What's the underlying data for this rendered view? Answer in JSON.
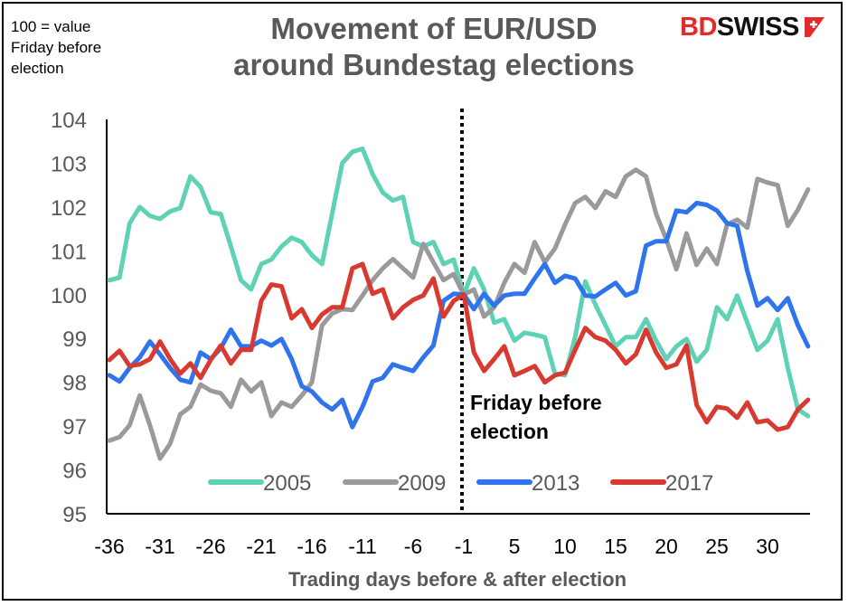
{
  "note": [
    "100 = value",
    "Friday before",
    "election"
  ],
  "logo_text": "BDSWISS",
  "colors": {
    "2005": "#5fd1b5",
    "2009": "#9a9a9c",
    "2013": "#2f74ec",
    "2017": "#d83a32",
    "text": "#595959"
  },
  "chart_data": {
    "type": "line",
    "title": [
      "Movement of EUR/USD",
      "around Bundestag elections"
    ],
    "xlabel": "Trading days before & after election",
    "ylabel": "",
    "ylim": [
      95,
      104
    ],
    "yticks": [
      "95",
      "96",
      "97",
      "98",
      "99",
      "100",
      "101",
      "102",
      "103",
      "104"
    ],
    "xticks": [
      "-36",
      "-31",
      "-26",
      "-21",
      "-16",
      "-11",
      "-6",
      "-1",
      "5",
      "10",
      "15",
      "20",
      "25",
      "30"
    ],
    "x": [
      -36,
      -35,
      -34,
      -33,
      -32,
      -31,
      -30,
      -29,
      -28,
      -27,
      -26,
      -25,
      -24,
      -23,
      -22,
      -21,
      -20,
      -19,
      -18,
      -17,
      -16,
      -15,
      -14,
      -13,
      -12,
      -11,
      -10,
      -9,
      -8,
      -7,
      -6,
      -5,
      -4,
      -3,
      -2,
      -1,
      1,
      2,
      3,
      4,
      5,
      6,
      7,
      8,
      9,
      10,
      11,
      12,
      13,
      14,
      15,
      16,
      17,
      18,
      19,
      20,
      21,
      22,
      23,
      24,
      25,
      26,
      27,
      28,
      29,
      30,
      31,
      32,
      33,
      34
    ],
    "grid": false,
    "legend": "bottom-inside",
    "annotation": [
      "Friday before",
      "election"
    ],
    "series": [
      {
        "name": "2005",
        "values": [
          100.33,
          100.39,
          101.63,
          102.0,
          101.8,
          101.73,
          101.9,
          101.98,
          102.7,
          102.46,
          101.88,
          101.84,
          101.1,
          100.33,
          100.12,
          100.7,
          100.8,
          101.1,
          101.3,
          101.2,
          100.9,
          100.7,
          101.85,
          103.0,
          103.26,
          103.33,
          102.75,
          102.33,
          102.15,
          102.23,
          101.2,
          101.1,
          101.2,
          100.7,
          100.8,
          100.0,
          100.6,
          100.12,
          99.36,
          99.44,
          98.95,
          99.13,
          99.09,
          99.03,
          98.2,
          98.16,
          99.03,
          100.3,
          99.77,
          99.3,
          98.82,
          99.03,
          99.03,
          99.44,
          98.95,
          98.53,
          98.82,
          98.99,
          98.47,
          98.74,
          99.71,
          99.44,
          99.98,
          99.36,
          98.74,
          98.95,
          99.44,
          98.33,
          97.38,
          97.23
        ]
      },
      {
        "name": "2009",
        "values": [
          96.67,
          96.75,
          97.02,
          97.7,
          97.02,
          96.26,
          96.6,
          97.27,
          97.44,
          97.95,
          97.81,
          97.75,
          97.44,
          98.06,
          97.79,
          98.0,
          97.23,
          97.54,
          97.44,
          97.7,
          98.0,
          99.3,
          99.57,
          99.67,
          99.65,
          99.98,
          100.33,
          100.6,
          100.81,
          100.6,
          100.39,
          101.16,
          100.74,
          100.33,
          100.47,
          100.0,
          100.12,
          99.5,
          99.71,
          100.27,
          100.7,
          100.5,
          101.2,
          100.74,
          101.05,
          101.6,
          102.09,
          102.23,
          101.98,
          102.36,
          102.23,
          102.7,
          102.85,
          102.7,
          101.84,
          101.26,
          100.58,
          101.4,
          100.68,
          101.05,
          100.7,
          101.6,
          101.71,
          101.53,
          102.64,
          102.56,
          102.5,
          101.57,
          101.94,
          102.4
        ]
      },
      {
        "name": "2013",
        "values": [
          98.16,
          98.02,
          98.33,
          98.57,
          98.93,
          98.64,
          98.33,
          98.06,
          98.0,
          98.68,
          98.53,
          98.78,
          99.2,
          98.82,
          98.82,
          98.95,
          98.84,
          98.99,
          98.53,
          97.91,
          97.79,
          97.54,
          97.38,
          97.6,
          96.98,
          97.44,
          98.02,
          98.1,
          98.41,
          98.33,
          98.26,
          98.57,
          98.84,
          99.86,
          100.02,
          100.0,
          99.67,
          100.02,
          99.75,
          99.98,
          100.02,
          100.02,
          100.37,
          100.7,
          100.27,
          100.43,
          100.37,
          99.98,
          99.96,
          100.12,
          100.27,
          99.98,
          100.08,
          101.12,
          101.22,
          101.22,
          101.92,
          101.88,
          102.09,
          102.05,
          101.92,
          101.63,
          101.57,
          100.54,
          99.75,
          99.92,
          99.65,
          99.92,
          99.3,
          98.82
        ]
      },
      {
        "name": "2017",
        "values": [
          98.51,
          98.72,
          98.37,
          98.41,
          98.53,
          98.93,
          98.53,
          98.2,
          98.43,
          98.1,
          98.51,
          98.84,
          98.43,
          98.74,
          98.74,
          99.86,
          100.23,
          100.19,
          99.46,
          99.67,
          99.24,
          99.55,
          99.71,
          99.71,
          100.6,
          100.7,
          100.02,
          100.12,
          99.46,
          99.71,
          99.88,
          99.98,
          100.37,
          99.5,
          99.86,
          100.0,
          98.68,
          98.26,
          98.53,
          98.82,
          98.16,
          98.26,
          98.37,
          98.0,
          98.16,
          98.22,
          98.74,
          99.24,
          99.03,
          98.95,
          98.74,
          98.43,
          98.64,
          99.2,
          98.68,
          98.33,
          98.41,
          98.84,
          97.48,
          97.09,
          97.44,
          97.4,
          97.19,
          97.54,
          97.09,
          97.13,
          96.92,
          96.98,
          97.38,
          97.6
        ]
      }
    ]
  }
}
